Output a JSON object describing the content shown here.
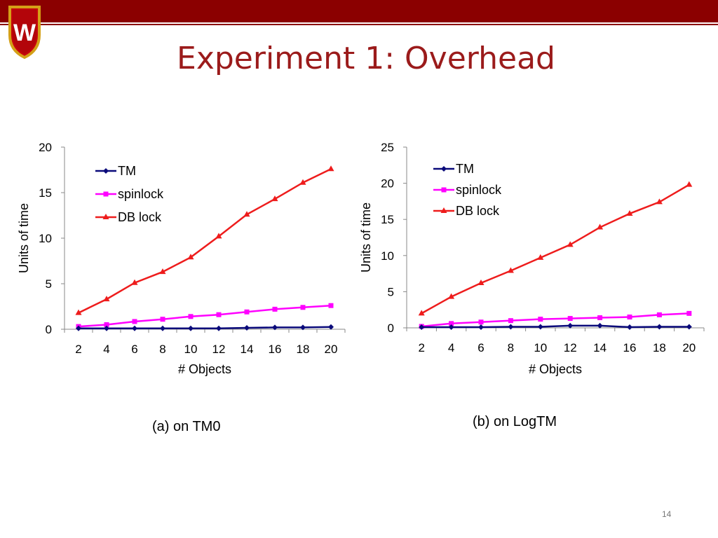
{
  "slide": {
    "title": "Experiment 1: Overhead",
    "slide_number": "14",
    "logo": {
      "name": "University of Wisconsin crest",
      "letter": "W"
    }
  },
  "colors": {
    "header_bar": "#8b0000",
    "title": "#9b1b1b",
    "TM": "#0a0a7a",
    "spinlock": "#ff00ff",
    "DB lock": "#ee1c1c"
  },
  "chart_data": [
    {
      "type": "line",
      "caption": "(a) on TM0",
      "xlabel": "# Objects",
      "ylabel": "Units of time",
      "x": [
        2,
        4,
        6,
        8,
        10,
        12,
        14,
        16,
        18,
        20
      ],
      "ylim": [
        0,
        20
      ],
      "yticks": [
        0,
        5,
        10,
        15,
        20
      ],
      "grid": false,
      "legend": "top-left",
      "series": [
        {
          "name": "TM",
          "marker": "diamond",
          "values": [
            0.1,
            0.1,
            0.1,
            0.1,
            0.1,
            0.1,
            0.15,
            0.2,
            0.2,
            0.25
          ]
        },
        {
          "name": "spinlock",
          "marker": "square",
          "values": [
            0.3,
            0.5,
            0.85,
            1.1,
            1.4,
            1.6,
            1.9,
            2.2,
            2.4,
            2.6
          ]
        },
        {
          "name": "DB lock",
          "marker": "triangle",
          "values": [
            1.8,
            3.3,
            5.1,
            6.3,
            7.9,
            10.2,
            12.6,
            14.3,
            16.1,
            17.6
          ]
        }
      ]
    },
    {
      "type": "line",
      "caption": "(b) on LogTM",
      "xlabel": "# Objects",
      "ylabel": "Units of time",
      "x": [
        2,
        4,
        6,
        8,
        10,
        12,
        14,
        16,
        18,
        20
      ],
      "ylim": [
        0,
        25
      ],
      "yticks": [
        0,
        5,
        10,
        15,
        20,
        25
      ],
      "grid": false,
      "legend": "top-left",
      "series": [
        {
          "name": "TM",
          "marker": "diamond",
          "values": [
            0.1,
            0.1,
            0.1,
            0.15,
            0.15,
            0.3,
            0.3,
            0.1,
            0.15,
            0.15
          ]
        },
        {
          "name": "spinlock",
          "marker": "square",
          "values": [
            0.2,
            0.6,
            0.8,
            1.0,
            1.2,
            1.3,
            1.4,
            1.5,
            1.8,
            2.0
          ]
        },
        {
          "name": "DB lock",
          "marker": "triangle",
          "values": [
            2.0,
            4.3,
            6.2,
            7.9,
            9.7,
            11.5,
            13.9,
            15.8,
            17.4,
            19.8
          ]
        }
      ]
    }
  ]
}
